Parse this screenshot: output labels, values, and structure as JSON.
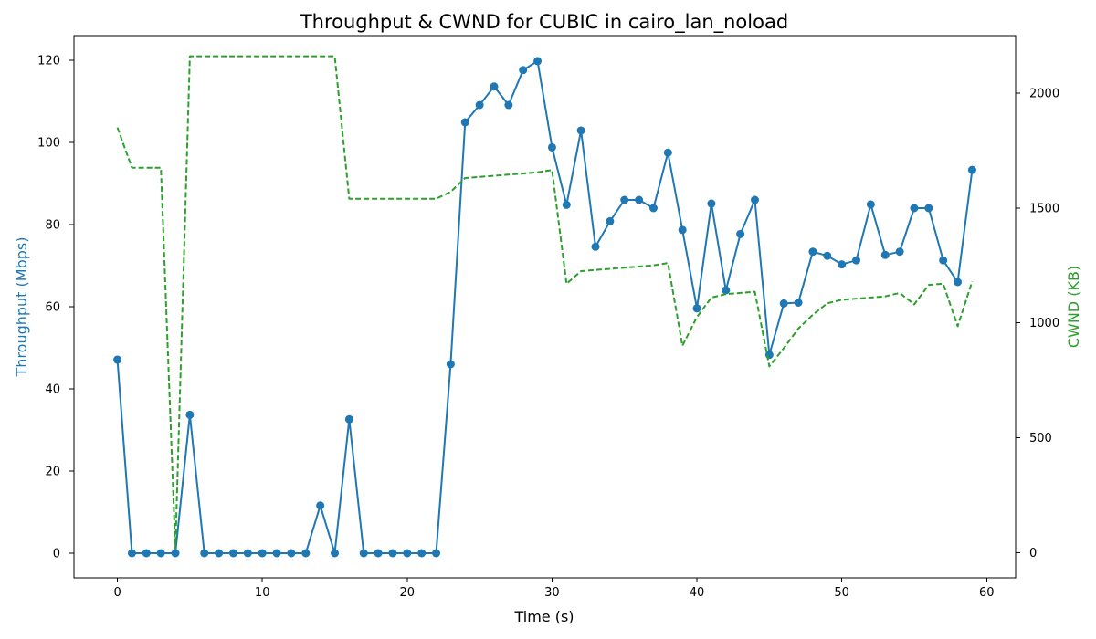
{
  "chart_data": {
    "type": "line",
    "title": "Throughput & CWND for CUBIC in cairo_lan_noload",
    "xlabel": "Time (s)",
    "ylabel_left": "Throughput (Mbps)",
    "ylabel_right": "CWND (KB)",
    "xlim": [
      -3,
      62
    ],
    "ylim_left": [
      -6,
      126
    ],
    "ylim_right": [
      -110,
      2250
    ],
    "x_ticks": [
      0,
      10,
      20,
      30,
      40,
      50,
      60
    ],
    "y_ticks_left": [
      0,
      20,
      40,
      60,
      80,
      100,
      120
    ],
    "y_ticks_right": [
      0,
      500,
      1000,
      1500,
      2000
    ],
    "grid": false,
    "legend": "none",
    "colors": {
      "throughput": "#1f77b4",
      "cwnd": "#2ca02c"
    },
    "series": [
      {
        "axis": "left",
        "style": "solid-markers",
        "x": [
          0,
          1,
          2,
          3,
          4,
          5,
          6,
          7,
          8,
          9,
          10,
          11,
          12,
          13,
          14,
          15,
          16,
          17,
          18,
          19,
          20,
          21,
          22,
          23,
          24,
          25,
          26,
          27,
          28,
          29,
          30,
          31,
          32,
          33,
          34,
          35,
          36,
          37,
          38,
          39,
          40,
          41,
          42,
          43,
          44,
          45,
          46,
          47,
          48,
          49,
          50,
          51,
          52,
          53,
          54,
          55,
          56,
          57,
          58,
          59
        ],
        "values": [
          47.1,
          0,
          0,
          0,
          0,
          33.7,
          0,
          0,
          0,
          0,
          0,
          0,
          0,
          0,
          11.6,
          0,
          32.6,
          0,
          0,
          0,
          0,
          0,
          0,
          46.0,
          104.9,
          109.1,
          113.6,
          109.1,
          117.6,
          119.8,
          98.8,
          84.8,
          102.9,
          74.6,
          80.8,
          86.0,
          86.0,
          84.0,
          97.5,
          78.7,
          59.6,
          85.1,
          64.0,
          77.7,
          86.0,
          48.3,
          60.8,
          61.0,
          73.4,
          72.4,
          70.3,
          71.3,
          84.9,
          72.6,
          73.4,
          84.0,
          84.0,
          71.3,
          66.0,
          93.3
        ]
      },
      {
        "axis": "right",
        "style": "dashed",
        "x": [
          0,
          1,
          2,
          3,
          4,
          5,
          6,
          7,
          8,
          9,
          10,
          11,
          12,
          13,
          14,
          15,
          16,
          17,
          18,
          19,
          20,
          21,
          22,
          23,
          24,
          25,
          26,
          27,
          28,
          29,
          30,
          31,
          32,
          33,
          34,
          35,
          36,
          37,
          38,
          39,
          40,
          41,
          42,
          43,
          44,
          45,
          46,
          47,
          48,
          49,
          50,
          51,
          52,
          53,
          54,
          55,
          56,
          57,
          58,
          59
        ],
        "values": [
          1850,
          1675,
          1675,
          1675,
          15,
          2160,
          2160,
          2160,
          2160,
          2160,
          2160,
          2160,
          2160,
          2160,
          2160,
          2160,
          1540,
          1540,
          1540,
          1540,
          1540,
          1540,
          1540,
          1570,
          1630,
          1635,
          1640,
          1645,
          1650,
          1655,
          1665,
          1170,
          1225,
          1230,
          1235,
          1240,
          1245,
          1250,
          1260,
          900,
          1025,
          1110,
          1125,
          1130,
          1135,
          810,
          890,
          975,
          1035,
          1085,
          1100,
          1105,
          1110,
          1115,
          1130,
          1080,
          1165,
          1170,
          985,
          1180
        ]
      }
    ]
  }
}
